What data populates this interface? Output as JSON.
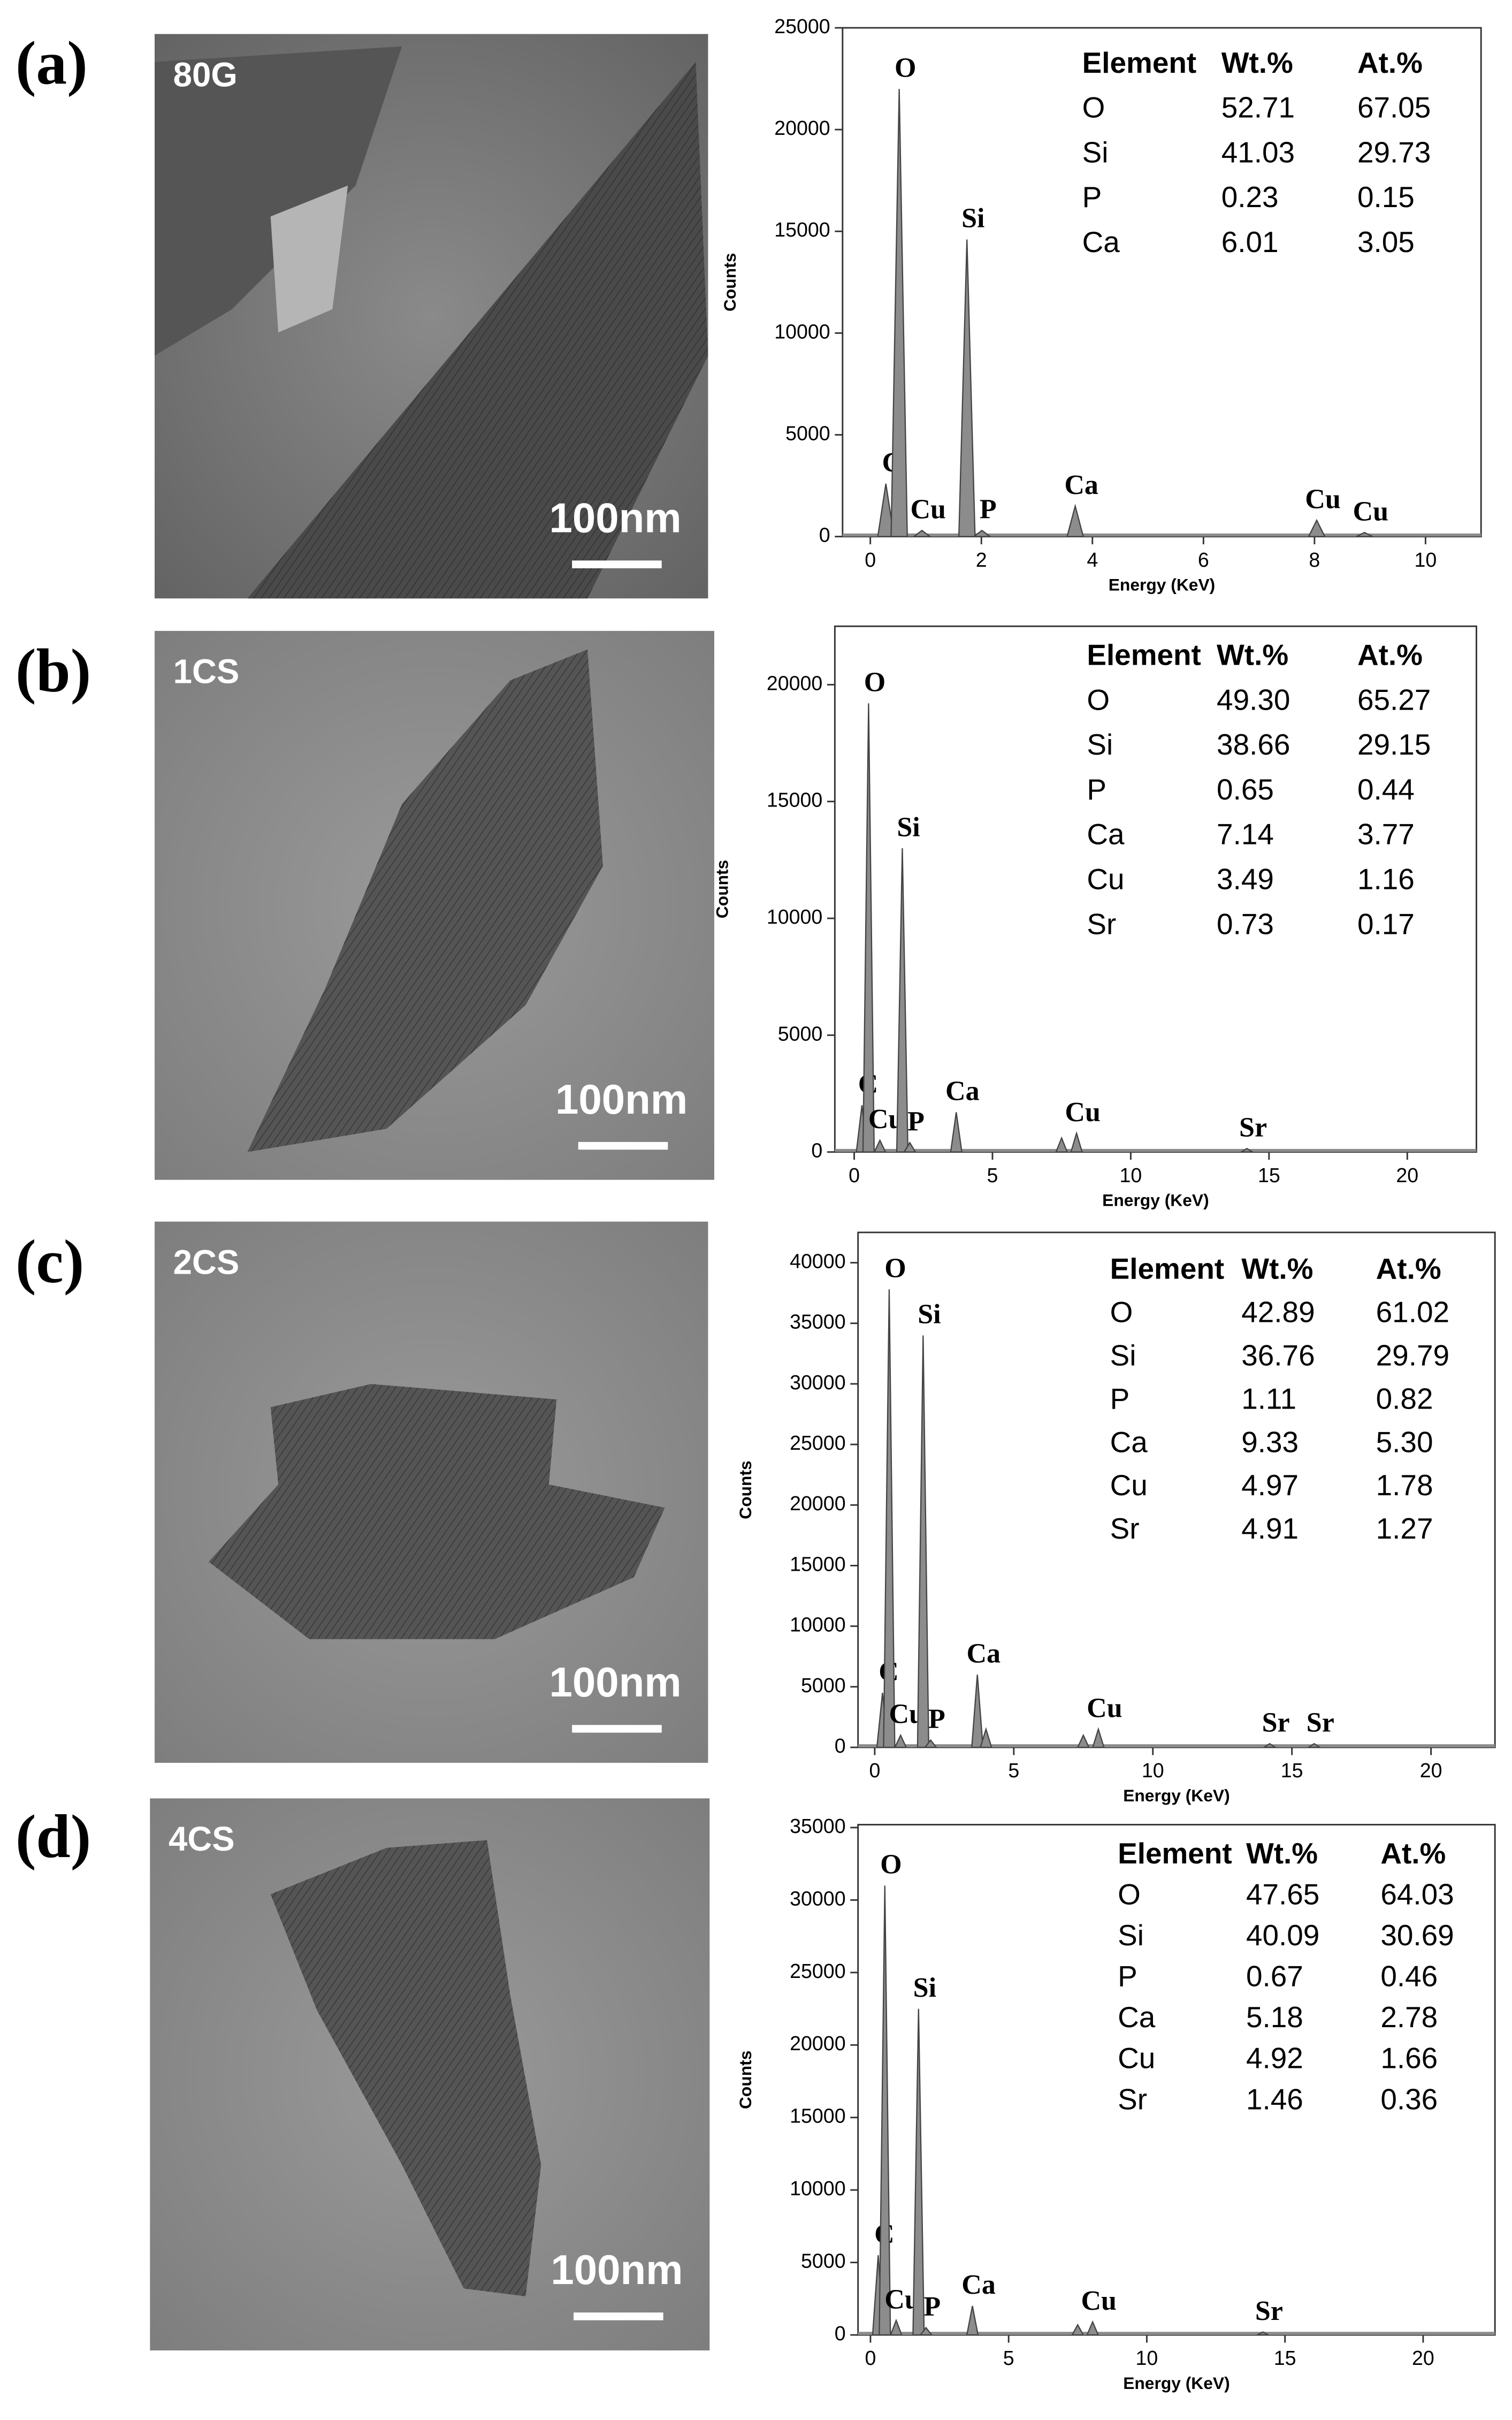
{
  "panels": [
    {
      "label": "(a)",
      "sample": "80G",
      "scale_bar": "100nm"
    },
    {
      "label": "(b)",
      "sample": "1CS",
      "scale_bar": "100nm"
    },
    {
      "label": "(c)",
      "sample": "2CS",
      "scale_bar": "100nm"
    },
    {
      "label": "(d)",
      "sample": "4CS",
      "scale_bar": "100nm"
    }
  ],
  "chart_data": [
    {
      "type": "spectrum",
      "x_label": "Energy (KeV)",
      "y_label": "Counts",
      "color": "#8c8c8c",
      "x": [
        0.28,
        0.52,
        0.93,
        1.74,
        2.01,
        3.69,
        8.04,
        8.9
      ],
      "values": [
        2600,
        22000,
        300,
        14600,
        300,
        1500,
        800,
        200
      ],
      "peak_labels": [
        "C",
        "O",
        "Cu",
        "Si",
        "P",
        "Ca",
        "Cu",
        "Cu"
      ],
      "xlim": [
        -0.5,
        11
      ],
      "xticks": [
        0,
        2,
        4,
        6,
        8,
        10
      ],
      "ylim": [
        0,
        25000
      ],
      "yticks": [
        0,
        5000,
        10000,
        15000,
        20000,
        25000
      ],
      "table": {
        "header": [
          "Element",
          "Wt.%",
          "At.%"
        ],
        "rows": [
          [
            "O",
            "52.71",
            "67.05"
          ],
          [
            "Si",
            "41.03",
            "29.73"
          ],
          [
            "P",
            "0.23",
            "0.15"
          ],
          [
            "Ca",
            "6.01",
            "3.05"
          ]
        ]
      }
    },
    {
      "type": "spectrum",
      "x_label": "Energy (KeV)",
      "y_label": "Counts",
      "color": "#8c8c8c",
      "x": [
        0.28,
        0.52,
        0.93,
        1.74,
        2.01,
        3.69,
        7.5,
        8.04,
        14.2
      ],
      "values": [
        2000,
        19200,
        500,
        13000,
        400,
        1700,
        600,
        800,
        150
      ],
      "peak_labels": [
        "C",
        "O",
        "Cu",
        "Si",
        "P",
        "Ca",
        null,
        "Cu",
        "Sr"
      ],
      "xlim": [
        -0.7,
        22.5
      ],
      "xticks": [
        0,
        5,
        10,
        15,
        20
      ],
      "ylim": [
        0,
        22500
      ],
      "yticks": [
        0,
        5000,
        10000,
        15000,
        20000
      ],
      "table": {
        "header": [
          "Element",
          "Wt.%",
          "At.%"
        ],
        "rows": [
          [
            "O",
            "49.30",
            "65.27"
          ],
          [
            "Si",
            "38.66",
            "29.15"
          ],
          [
            "P",
            "0.65",
            "0.44"
          ],
          [
            "Ca",
            "7.14",
            "3.77"
          ],
          [
            "Cu",
            "3.49",
            "1.16"
          ],
          [
            "Sr",
            "0.73",
            "0.17"
          ]
        ]
      }
    },
    {
      "type": "spectrum",
      "x_label": "Energy (KeV)",
      "y_label": "Counts",
      "color": "#8c8c8c",
      "x": [
        0.28,
        0.52,
        0.93,
        1.74,
        2.01,
        3.69,
        4.0,
        7.5,
        8.04,
        14.2,
        15.8
      ],
      "values": [
        4500,
        37800,
        1000,
        34000,
        600,
        6000,
        1500,
        1000,
        1500,
        300,
        300
      ],
      "peak_labels": [
        "C",
        "O",
        "Cu",
        "Si",
        "P",
        "Ca",
        null,
        null,
        "Cu",
        "Sr",
        "Sr"
      ],
      "xlim": [
        -0.6,
        22.3
      ],
      "xticks": [
        0,
        5,
        10,
        15,
        20
      ],
      "ylim": [
        0,
        42500
      ],
      "yticks": [
        0,
        5000,
        10000,
        15000,
        20000,
        25000,
        30000,
        35000,
        40000
      ],
      "table": {
        "header": [
          "Element",
          "Wt.%",
          "At.%"
        ],
        "rows": [
          [
            "O",
            "42.89",
            "61.02"
          ],
          [
            "Si",
            "36.76",
            "29.79"
          ],
          [
            "P",
            "1.11",
            "0.82"
          ],
          [
            "Ca",
            "9.33",
            "5.30"
          ],
          [
            "Cu",
            "4.97",
            "1.78"
          ],
          [
            "Sr",
            "4.91",
            "1.27"
          ]
        ]
      }
    },
    {
      "type": "spectrum",
      "x_label": "Energy (KeV)",
      "y_label": "Counts",
      "color": "#8c8c8c",
      "x": [
        0.28,
        0.52,
        0.93,
        1.74,
        2.01,
        3.69,
        7.5,
        8.04,
        14.2
      ],
      "values": [
        5500,
        31000,
        1000,
        22500,
        500,
        2000,
        700,
        900,
        200
      ],
      "peak_labels": [
        "C",
        "O",
        "Cu",
        "Si",
        "P",
        "Ca",
        null,
        "Cu",
        "Sr"
      ],
      "xlim": [
        -0.45,
        22.6
      ],
      "xticks": [
        0,
        5,
        10,
        15,
        20
      ],
      "ylim": [
        0,
        35200
      ],
      "yticks": [
        0,
        5000,
        10000,
        15000,
        20000,
        25000,
        30000,
        35000
      ],
      "table": {
        "header": [
          "Element",
          "Wt.%",
          "At.%"
        ],
        "rows": [
          [
            "O",
            "47.65",
            "64.03"
          ],
          [
            "Si",
            "40.09",
            "30.69"
          ],
          [
            "P",
            "0.67",
            "0.46"
          ],
          [
            "Ca",
            "5.18",
            "2.78"
          ],
          [
            "Cu",
            "4.92",
            "1.66"
          ],
          [
            "Sr",
            "1.46",
            "0.36"
          ]
        ]
      }
    }
  ]
}
